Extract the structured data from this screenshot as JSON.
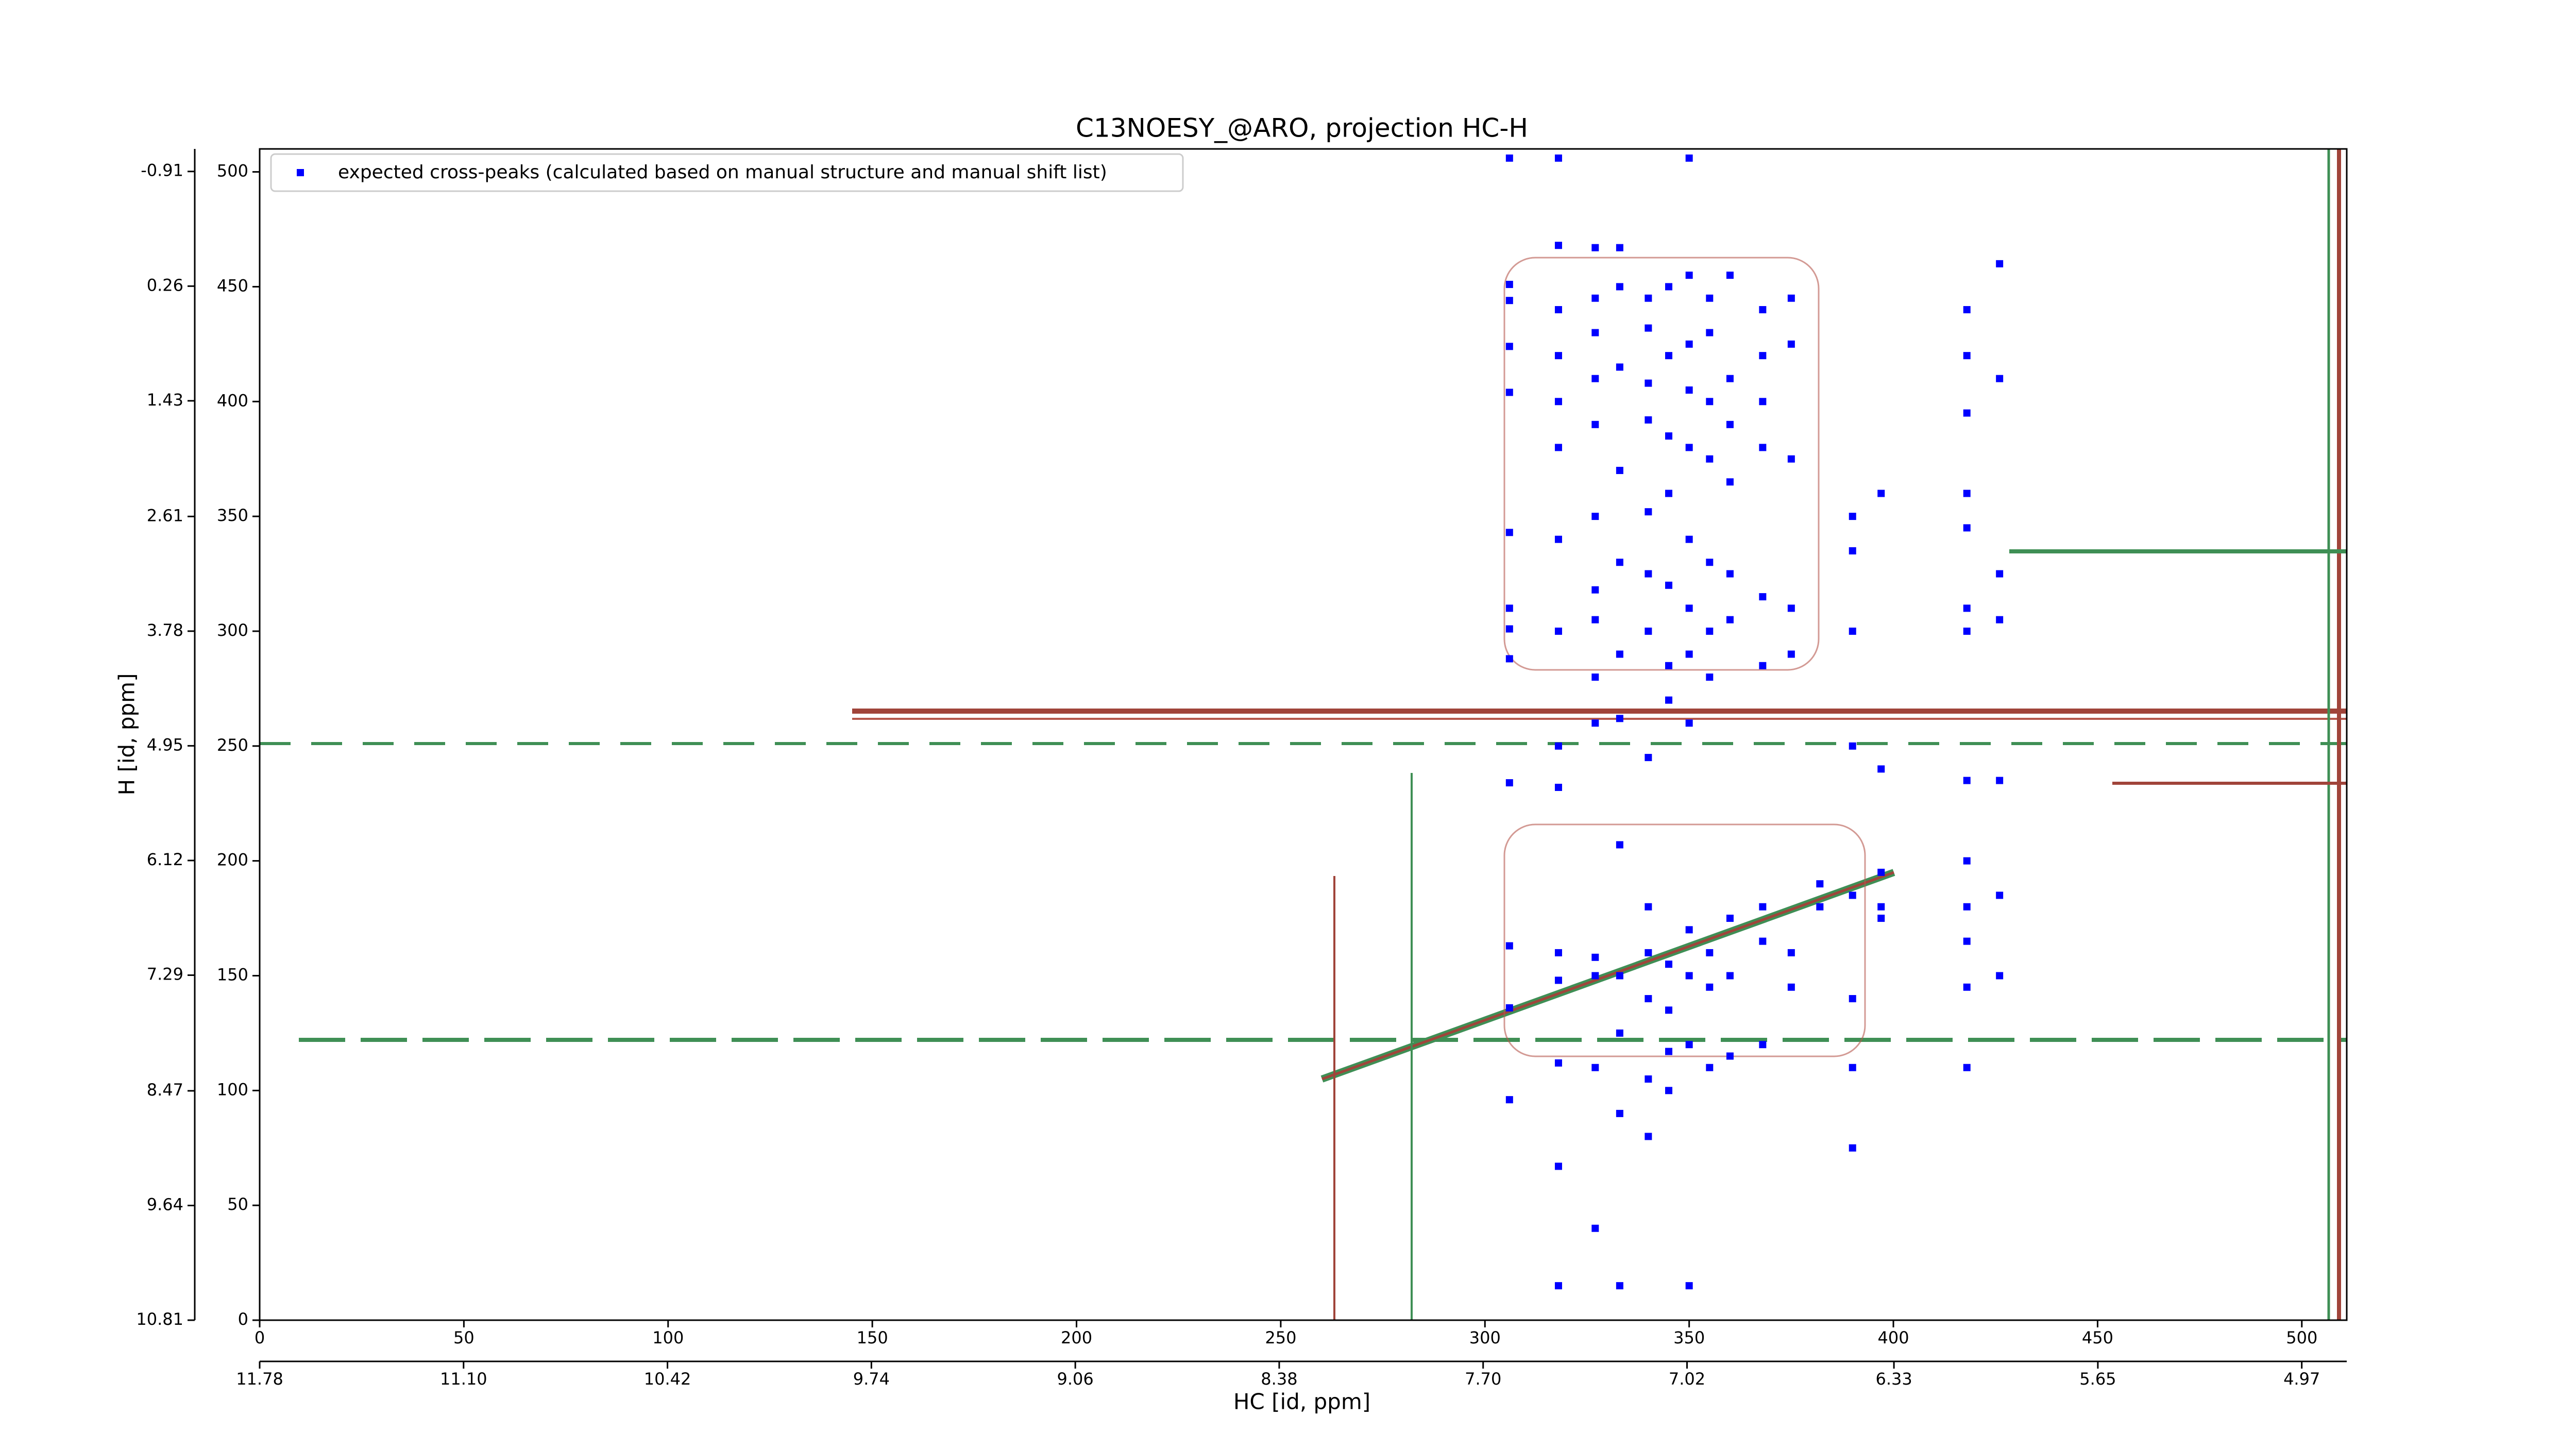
{
  "chart_data": {
    "type": "scatter",
    "title": "C13NOESY_@ARO, projection HC-H",
    "xlim": [
      0,
      511
    ],
    "xticks": [
      0,
      50,
      100,
      150,
      200,
      250,
      300,
      350,
      400,
      450,
      500
    ],
    "ylim": [
      0,
      510
    ],
    "yticks": [
      0,
      50,
      100,
      150,
      200,
      250,
      300,
      350,
      400,
      450,
      500
    ],
    "x2label": "HC [id, ppm]",
    "x2lim": [
      11.78,
      4.82
    ],
    "x2ticks": [
      11.78,
      {
        "value": 11.1,
        "label": "11.10"
      },
      10.42,
      9.74,
      9.06,
      8.38,
      {
        "value": 7.7,
        "label": "7.70"
      },
      7.02,
      6.33,
      5.65,
      4.97
    ],
    "y2label": "H [id, ppm]",
    "y2lim": [
      10.81,
      -1.14
    ],
    "y2ticks": [
      10.81,
      9.64,
      8.47,
      7.29,
      6.12,
      4.95,
      3.78,
      2.61,
      1.43,
      0.26,
      -0.91
    ],
    "legend": "upper left",
    "series": [
      {
        "name": "expected cross-peaks (calculated based on manual structure and manual shift list)",
        "color": "#0000ff",
        "marker": "square",
        "x": [
          306,
          306,
          306,
          306,
          306,
          306,
          306,
          306,
          306,
          306,
          306,
          306,
          306,
          318,
          318,
          318,
          318,
          318,
          318,
          318,
          318,
          318,
          318,
          318,
          318,
          318,
          318,
          318,
          327,
          327,
          327,
          327,
          327,
          327,
          327,
          327,
          327,
          327,
          327,
          327,
          327,
          327,
          333,
          333,
          333,
          333,
          333,
          333,
          333,
          333,
          333,
          333,
          333,
          333,
          340,
          340,
          340,
          340,
          340,
          340,
          340,
          340,
          340,
          340,
          340,
          340,
          340,
          345,
          345,
          345,
          345,
          345,
          345,
          345,
          345,
          345,
          345,
          345,
          350,
          350,
          350,
          350,
          350,
          350,
          350,
          350,
          350,
          350,
          350,
          350,
          350,
          355,
          355,
          355,
          355,
          355,
          355,
          355,
          355,
          355,
          355,
          360,
          360,
          360,
          360,
          360,
          360,
          360,
          360,
          360,
          368,
          368,
          368,
          368,
          368,
          368,
          368,
          368,
          368,
          375,
          375,
          375,
          375,
          375,
          375,
          375,
          382,
          382,
          390,
          390,
          390,
          390,
          390,
          390,
          390,
          390,
          397,
          397,
          397,
          397,
          397,
          418,
          418,
          418,
          418,
          418,
          418,
          418,
          418,
          418,
          418,
          418,
          418,
          418,
          426,
          426,
          426,
          426,
          426,
          426,
          426
        ],
        "y": [
          506,
          451,
          444,
          424,
          404,
          343,
          310,
          301,
          288,
          234,
          163,
          136,
          96,
          506,
          468,
          440,
          420,
          400,
          380,
          340,
          300,
          250,
          232,
          160,
          148,
          112,
          67,
          15,
          467,
          445,
          430,
          410,
          390,
          350,
          318,
          305,
          280,
          260,
          158,
          150,
          110,
          40,
          467,
          450,
          415,
          370,
          330,
          290,
          262,
          207,
          150,
          125,
          90,
          15,
          445,
          432,
          408,
          392,
          352,
          325,
          300,
          245,
          180,
          160,
          140,
          105,
          80,
          450,
          420,
          385,
          360,
          320,
          285,
          270,
          155,
          135,
          117,
          100,
          506,
          455,
          425,
          405,
          380,
          340,
          310,
          290,
          260,
          170,
          150,
          120,
          15,
          445,
          430,
          400,
          375,
          330,
          300,
          280,
          160,
          145,
          110,
          455,
          410,
          390,
          365,
          325,
          305,
          175,
          150,
          115,
          440,
          420,
          400,
          380,
          315,
          285,
          180,
          165,
          120,
          445,
          425,
          375,
          310,
          290,
          160,
          145,
          190,
          180,
          350,
          335,
          300,
          250,
          185,
          140,
          110,
          75,
          360,
          240,
          195,
          180,
          175,
          440,
          420,
          395,
          360,
          345,
          310,
          300,
          235,
          200,
          180,
          165,
          145,
          110,
          460,
          410,
          325,
          305,
          235,
          185,
          150
        ]
      }
    ]
  }
}
